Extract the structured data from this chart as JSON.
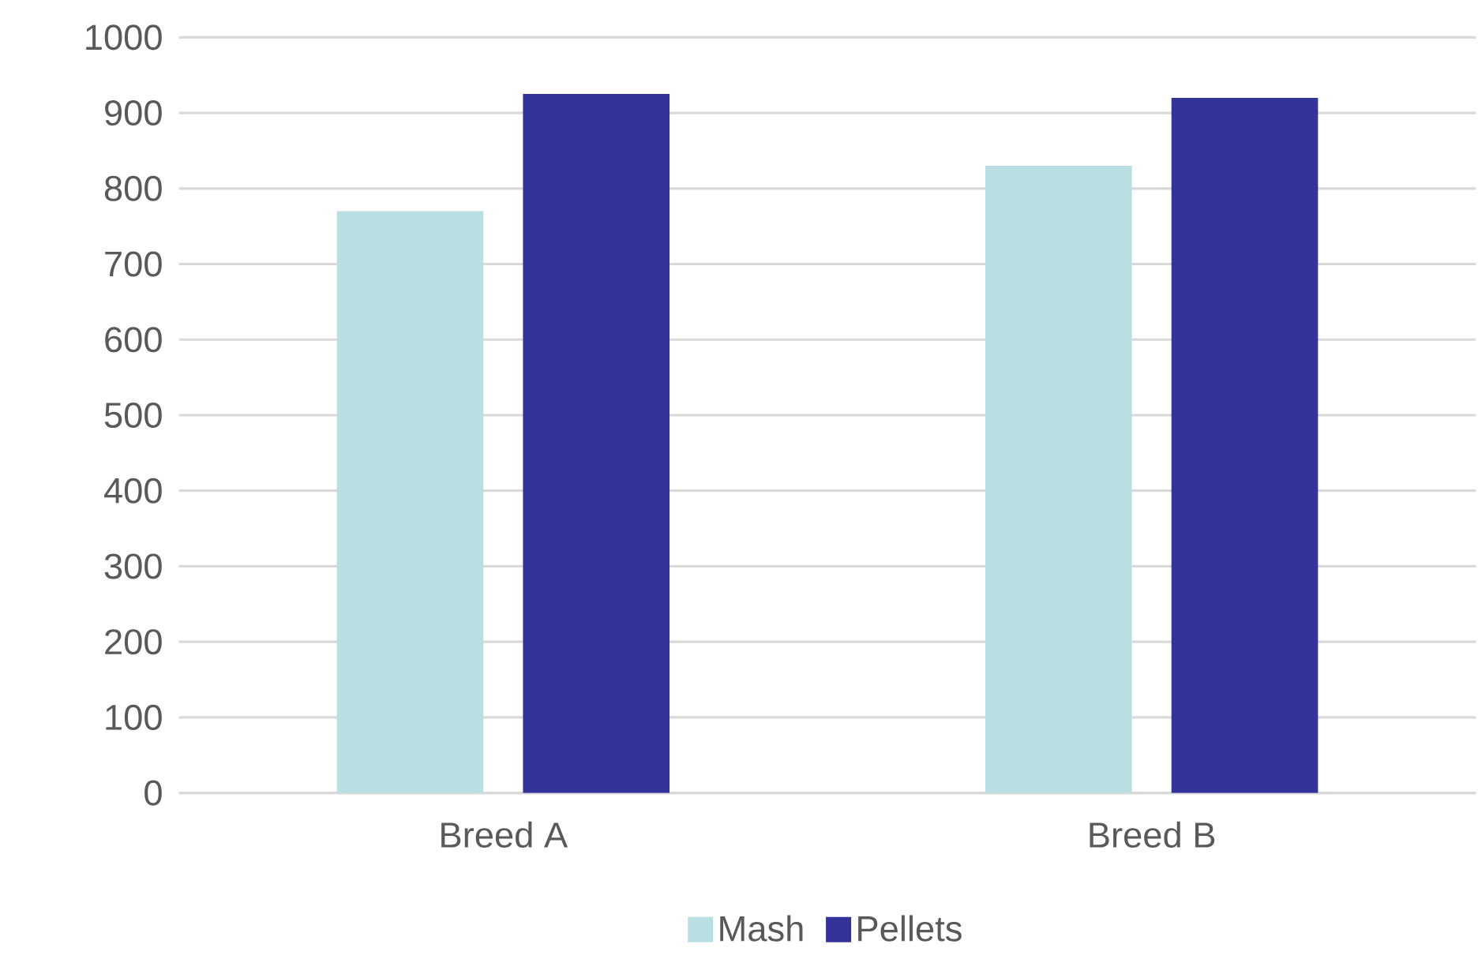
{
  "chart_data": {
    "type": "bar",
    "categories": [
      "Breed A",
      "Breed B"
    ],
    "series": [
      {
        "name": "Mash",
        "color": "#b9dfe2",
        "values": [
          770,
          830
        ]
      },
      {
        "name": "Pellets",
        "color": "#333399",
        "values": [
          925,
          920
        ]
      }
    ],
    "ylim": [
      0,
      1000
    ],
    "yticks": [
      0,
      100,
      200,
      300,
      400,
      500,
      600,
      700,
      800,
      900,
      1000
    ],
    "grid": "y",
    "legend": "bottom"
  }
}
